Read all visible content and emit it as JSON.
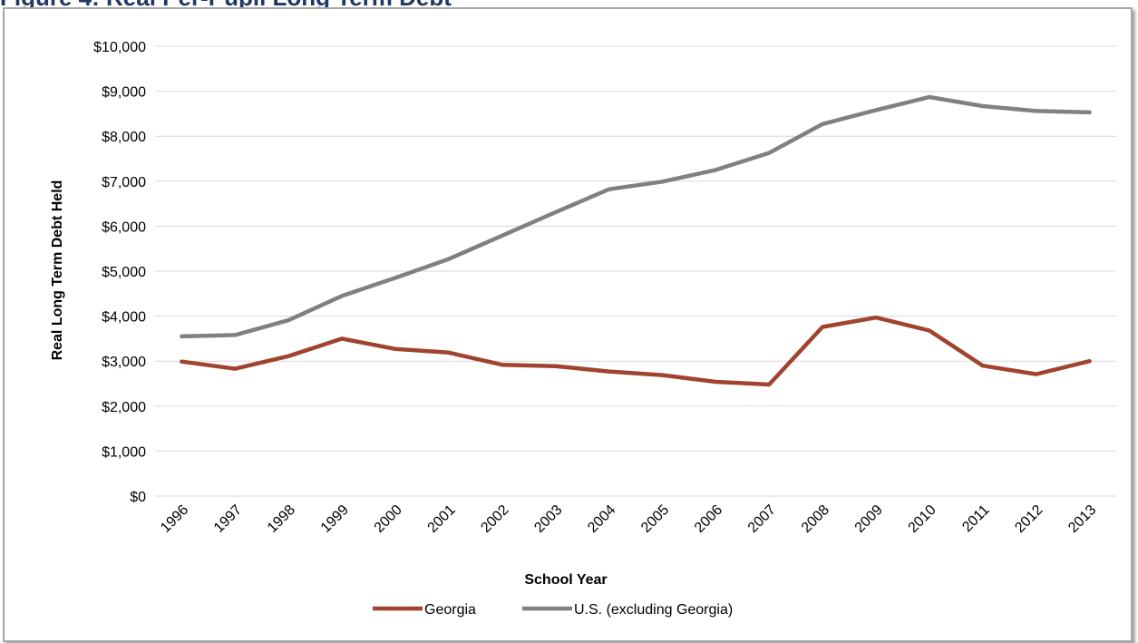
{
  "caption_partial": "Figure 4: Real Per-Pupil Long Term Debt",
  "chart_data": {
    "type": "line",
    "title": "",
    "xlabel": "School Year",
    "ylabel": "Real Long Term Debt Held",
    "ylim": [
      0,
      10000
    ],
    "y_ticks": [
      0,
      1000,
      2000,
      3000,
      4000,
      5000,
      6000,
      7000,
      8000,
      9000,
      10000
    ],
    "y_tick_labels": [
      "$0",
      "$1,000",
      "$2,000",
      "$3,000",
      "$4,000",
      "$5,000",
      "$6,000",
      "$7,000",
      "$8,000",
      "$9,000",
      "$10,000"
    ],
    "grid": true,
    "legend_position": "bottom",
    "categories": [
      "1996",
      "1997",
      "1998",
      "1999",
      "2000",
      "2001",
      "2002",
      "2003",
      "2004",
      "2005",
      "2006",
      "2007",
      "2008",
      "2009",
      "2010",
      "2011",
      "2012",
      "2013"
    ],
    "series": [
      {
        "name": "Georgia",
        "color": "#a0432f",
        "values": [
          2990,
          2830,
          3110,
          3500,
          3270,
          3190,
          2920,
          2890,
          2770,
          2690,
          2540,
          2480,
          3760,
          3970,
          3680,
          2900,
          2710,
          3000
        ]
      },
      {
        "name": "U.S. (excluding Georgia)",
        "color": "#808080",
        "values": [
          3550,
          3580,
          3910,
          4450,
          4850,
          5270,
          5790,
          6310,
          6820,
          6990,
          7250,
          7630,
          8270,
          8580,
          8870,
          8670,
          8560,
          8530
        ]
      }
    ]
  }
}
